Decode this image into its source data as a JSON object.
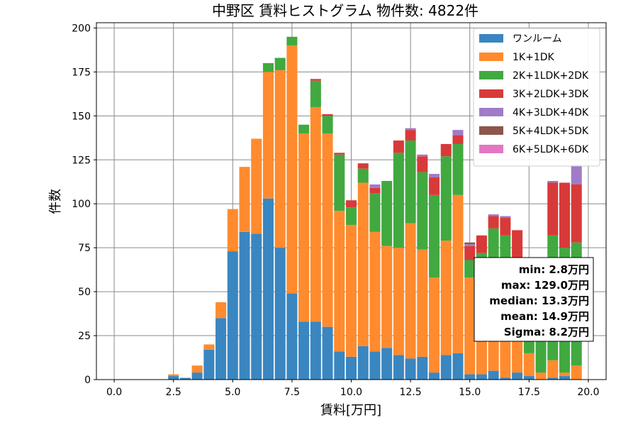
{
  "chart_data": {
    "type": "bar",
    "stacked": true,
    "title": "中野区 賃料ヒストグラム  物件数: 4822件",
    "xlabel": "賃料[万円]",
    "ylabel": "件数",
    "xlim": [
      -0.75,
      20.75
    ],
    "ylim": [
      0,
      203
    ],
    "xticks": [
      0,
      2.5,
      5,
      7.5,
      10,
      12.5,
      15,
      17.5,
      20
    ],
    "xtick_labels": [
      "0.0",
      "2.5",
      "5.0",
      "7.5",
      "10.0",
      "12.5",
      "15.0",
      "17.5",
      "20.0"
    ],
    "yticks": [
      0,
      25,
      50,
      75,
      100,
      125,
      150,
      175,
      200
    ],
    "bin_width": 0.5,
    "grid": true,
    "legend_position": "top-right",
    "x": [
      0,
      0.5,
      1,
      1.5,
      2,
      2.5,
      3,
      3.5,
      4,
      4.5,
      5,
      5.5,
      6,
      6.5,
      7,
      7.5,
      8,
      8.5,
      9,
      9.5,
      10,
      10.5,
      11,
      11.5,
      12,
      12.5,
      13,
      13.5,
      14,
      14.5,
      15,
      15.5,
      16,
      16.5,
      17,
      17.5,
      18,
      18.5,
      19,
      19.5
    ],
    "series": [
      {
        "name": "ワンルーム",
        "color": "#3a86c0",
        "values": [
          0,
          0,
          0,
          0,
          0,
          2,
          1,
          4,
          17,
          35,
          73,
          84,
          83,
          103,
          75,
          49,
          33,
          33,
          30,
          16,
          13,
          19,
          16,
          18,
          14,
          12,
          13,
          4,
          14,
          15,
          3,
          3,
          5,
          1,
          4,
          2,
          0,
          1,
          2,
          0
        ]
      },
      {
        "name": "1K+1DK",
        "color": "#ff8b2e",
        "values": [
          0,
          0,
          0,
          0,
          0,
          1,
          0,
          4,
          3,
          9,
          24,
          37,
          54,
          72,
          101,
          141,
          107,
          122,
          110,
          80,
          75,
          93,
          68,
          58,
          61,
          77,
          61,
          54,
          65,
          90,
          55,
          58,
          43,
          40,
          26,
          13,
          4,
          10,
          2,
          8
        ]
      },
      {
        "name": "2K+1LDK+2DK",
        "color": "#41a940",
        "values": [
          0,
          0,
          0,
          0,
          0,
          0,
          0,
          0,
          0,
          0,
          0,
          0,
          0,
          5,
          7,
          5,
          5,
          15,
          10,
          32,
          10,
          8,
          22,
          37,
          54,
          47,
          44,
          47,
          48,
          29,
          10,
          11,
          38,
          41,
          37,
          20,
          48,
          71,
          71,
          70
        ]
      },
      {
        "name": "3K+2LDK+3DK",
        "color": "#d83a39",
        "values": [
          0,
          0,
          0,
          0,
          0,
          0,
          0,
          0,
          0,
          0,
          0,
          0,
          0,
          0,
          0,
          0,
          0,
          1,
          1,
          1,
          4,
          3,
          3,
          0,
          7,
          6,
          9,
          10,
          7,
          5,
          8,
          10,
          7,
          10,
          18,
          8,
          8,
          30,
          37,
          33
        ]
      },
      {
        "name": "4K+3LDK+4DK",
        "color": "#a07bc8",
        "values": [
          0,
          0,
          0,
          0,
          0,
          0,
          0,
          0,
          0,
          0,
          0,
          0,
          0,
          0,
          0,
          0,
          0,
          0,
          0,
          0,
          0,
          0,
          2,
          0,
          0,
          1,
          1,
          2,
          0,
          3,
          1,
          0,
          1,
          1,
          0,
          0,
          6,
          1,
          0,
          11
        ]
      },
      {
        "name": "5K+4LDK+5DK",
        "color": "#8c564b",
        "values": [
          0,
          0,
          0,
          0,
          0,
          0,
          0,
          0,
          0,
          0,
          0,
          0,
          0,
          0,
          0,
          0,
          0,
          0,
          0,
          0,
          0,
          0,
          0,
          0,
          0,
          0,
          0,
          0,
          0,
          0,
          1,
          0,
          0,
          0,
          0,
          0,
          0,
          0,
          0,
          0
        ]
      },
      {
        "name": "6K+5LDK+6DK",
        "color": "#e377c2",
        "values": [
          0,
          0,
          0,
          0,
          0,
          0,
          0,
          0,
          0,
          0,
          0,
          0,
          0,
          0,
          0,
          0,
          0,
          0,
          0,
          0,
          0,
          0,
          0,
          0,
          0,
          0,
          0,
          0,
          0,
          0,
          0,
          0,
          0,
          0,
          0,
          0,
          0,
          0,
          0,
          0
        ]
      }
    ],
    "stats": {
      "min": "min: 2.8万円",
      "max": "max: 129.0万円",
      "median": "median: 13.3万円",
      "mean": "mean: 14.9万円",
      "sigma": "Sigma: 8.2万円"
    }
  }
}
